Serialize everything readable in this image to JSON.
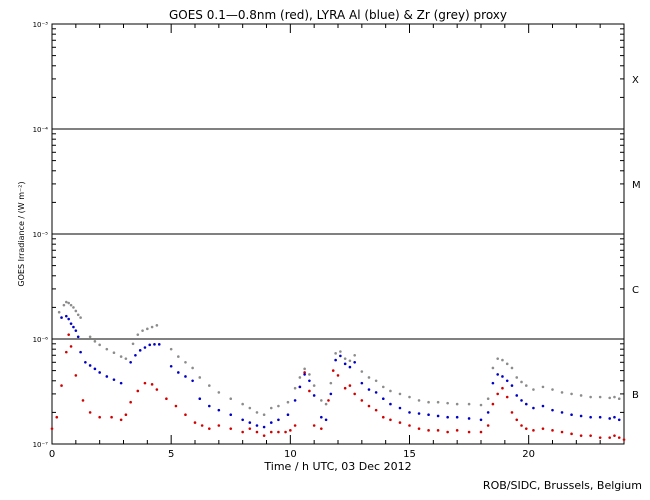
{
  "chart_data": {
    "type": "scatter",
    "title": "GOES 0.1—0.8nm (red), LYRA Al (blue) & Zr (grey) proxy",
    "xlabel": "Time / h UTC, 03 Dec 2012",
    "ylabel": "GOES Irradiance / (W m⁻²)",
    "xlim": [
      0,
      24
    ],
    "ylim": [
      1e-07,
      0.001
    ],
    "yscale": "log",
    "x_ticks": [
      0,
      5,
      10,
      15,
      20
    ],
    "x_tick_labels": [
      "0",
      "5",
      "10",
      "15",
      "20"
    ],
    "y_ticks": [
      1e-07,
      1e-06,
      1e-05,
      0.0001,
      0.001
    ],
    "y_tick_labels": [
      "10⁻⁷",
      "10⁻⁶",
      "10⁻⁵",
      "10⁻⁴",
      "10⁻³"
    ],
    "class_levels": [
      1e-06,
      1e-05,
      0.0001
    ],
    "class_labels": [
      {
        "label": "B",
        "y": 3e-07
      },
      {
        "label": "C",
        "y": 3e-06
      },
      {
        "label": "M",
        "y": 3e-05
      },
      {
        "label": "X",
        "y": 0.0003
      }
    ],
    "series": [
      {
        "color": "#d40000",
        "x": [
          0,
          0.2,
          0.4,
          0.6,
          0.7,
          0.8,
          1.0,
          1.3,
          1.6,
          2.0,
          2.5,
          2.9,
          3.1,
          3.3,
          3.6,
          3.9,
          4.2,
          4.4,
          4.8,
          5.2,
          5.6,
          6.0,
          6.3,
          6.6,
          7.0,
          7.5,
          8.0,
          8.3,
          8.6,
          8.9,
          9.2,
          9.5,
          9.8,
          10.0,
          10.2,
          10.4,
          10.6,
          10.8,
          11.0,
          11.3,
          11.6,
          11.8,
          12.0,
          12.3,
          12.5,
          12.7,
          13.0,
          13.3,
          13.6,
          13.9,
          14.2,
          14.6,
          15.0,
          15.4,
          15.8,
          16.2,
          16.6,
          17.0,
          17.5,
          18.0,
          18.3,
          18.5,
          18.7,
          18.9,
          19.1,
          19.3,
          19.5,
          19.7,
          19.9,
          20.2,
          20.6,
          21.0,
          21.4,
          21.8,
          22.2,
          22.6,
          23.0,
          23.4,
          23.6,
          23.8,
          24.0
        ],
        "y": [
          1.4e-07,
          1.8e-07,
          3.6e-07,
          7.5e-07,
          1.1e-06,
          8.5e-07,
          4.5e-07,
          2.6e-07,
          2e-07,
          1.8e-07,
          1.8e-07,
          1.7e-07,
          1.9e-07,
          2.5e-07,
          3.2e-07,
          3.8e-07,
          3.7e-07,
          3.3e-07,
          2.7e-07,
          2.3e-07,
          1.9e-07,
          1.6e-07,
          1.5e-07,
          1.4e-07,
          1.5e-07,
          1.4e-07,
          1.3e-07,
          1.4e-07,
          1.3e-07,
          1.2e-07,
          1.3e-07,
          1.3e-07,
          1.3e-07,
          1.35e-07,
          1.5e-07,
          3.5e-07,
          4.8e-07,
          3.2e-07,
          1.5e-07,
          1.4e-07,
          2.6e-07,
          5e-07,
          4.5e-07,
          3.4e-07,
          3.6e-07,
          3e-07,
          2.6e-07,
          2.3e-07,
          2.1e-07,
          1.8e-07,
          1.7e-07,
          1.6e-07,
          1.5e-07,
          1.4e-07,
          1.35e-07,
          1.35e-07,
          1.3e-07,
          1.35e-07,
          1.3e-07,
          1.3e-07,
          1.5e-07,
          2.4e-07,
          3e-07,
          3.4e-07,
          2.8e-07,
          2e-07,
          1.7e-07,
          1.5e-07,
          1.4e-07,
          1.35e-07,
          1.4e-07,
          1.35e-07,
          1.3e-07,
          1.25e-07,
          1.2e-07,
          1.2e-07,
          1.15e-07,
          1.15e-07,
          1.2e-07,
          1.15e-07,
          1.1e-07
        ]
      },
      {
        "color": "#0000c8",
        "x": [
          0.4,
          0.6,
          0.7,
          0.8,
          0.9,
          1.0,
          1.1,
          1.2,
          1.4,
          1.6,
          1.8,
          2.0,
          2.3,
          2.6,
          2.9,
          3.3,
          3.5,
          3.7,
          3.9,
          4.1,
          4.3,
          4.5,
          5.0,
          5.3,
          5.6,
          5.9,
          6.2,
          6.6,
          7.0,
          7.5,
          8.0,
          8.3,
          8.6,
          8.9,
          9.2,
          9.5,
          9.9,
          10.2,
          10.4,
          10.6,
          10.8,
          11.0,
          11.3,
          11.5,
          11.7,
          11.9,
          12.1,
          12.3,
          12.5,
          12.7,
          13.0,
          13.3,
          13.6,
          13.9,
          14.2,
          14.6,
          15.0,
          15.4,
          15.8,
          16.2,
          16.6,
          17.0,
          17.5,
          18.0,
          18.3,
          18.5,
          18.7,
          18.9,
          19.1,
          19.3,
          19.5,
          19.7,
          19.9,
          20.2,
          20.6,
          21.0,
          21.4,
          21.8,
          22.2,
          22.6,
          23.0,
          23.4,
          23.6,
          23.8
        ],
        "y": [
          1.6e-06,
          1.65e-06,
          1.55e-06,
          1.4e-06,
          1.3e-06,
          1.2e-06,
          1.05e-06,
          7.5e-07,
          6e-07,
          5.6e-07,
          5.2e-07,
          4.8e-07,
          4.4e-07,
          4.1e-07,
          3.8e-07,
          6e-07,
          7e-07,
          7.8e-07,
          8.3e-07,
          8.8e-07,
          8.9e-07,
          8.9e-07,
          5.5e-07,
          4.8e-07,
          4.4e-07,
          4e-07,
          2.7e-07,
          2.3e-07,
          2.1e-07,
          1.9e-07,
          1.7e-07,
          1.6e-07,
          1.5e-07,
          1.45e-07,
          1.6e-07,
          1.7e-07,
          1.9e-07,
          2.6e-07,
          3.5e-07,
          4.6e-07,
          4e-07,
          2.9e-07,
          1.8e-07,
          1.7e-07,
          3e-07,
          6.3e-07,
          6.9e-07,
          5.8e-07,
          5.4e-07,
          6e-07,
          3.8e-07,
          3.3e-07,
          3.1e-07,
          2.7e-07,
          2.4e-07,
          2.2e-07,
          2e-07,
          1.95e-07,
          1.9e-07,
          1.85e-07,
          1.8e-07,
          1.8e-07,
          1.75e-07,
          1.7e-07,
          2e-07,
          3.8e-07,
          4.6e-07,
          4.4e-07,
          4e-07,
          3.6e-07,
          2.9e-07,
          2.6e-07,
          2.4e-07,
          2.2e-07,
          2.3e-07,
          2.1e-07,
          2e-07,
          1.9e-07,
          1.85e-07,
          1.8e-07,
          1.8e-07,
          1.75e-07,
          1.8e-07,
          1.7e-07
        ]
      },
      {
        "color": "#8c8c8c",
        "x": [
          0.3,
          0.5,
          0.6,
          0.7,
          0.8,
          0.9,
          1.0,
          1.1,
          1.2,
          1.6,
          1.8,
          2.0,
          2.3,
          2.6,
          2.9,
          3.1,
          3.4,
          3.6,
          3.8,
          4.0,
          4.2,
          4.4,
          5.0,
          5.3,
          5.6,
          5.9,
          6.2,
          6.6,
          7.0,
          7.5,
          8.0,
          8.3,
          8.6,
          8.9,
          9.2,
          9.5,
          9.9,
          10.2,
          10.4,
          10.6,
          10.8,
          11.0,
          11.3,
          11.5,
          11.7,
          11.9,
          12.1,
          12.3,
          12.5,
          12.7,
          13.0,
          13.3,
          13.6,
          13.9,
          14.2,
          14.6,
          15.0,
          15.4,
          15.8,
          16.2,
          16.6,
          17.0,
          17.5,
          18.0,
          18.3,
          18.5,
          18.7,
          18.9,
          19.1,
          19.3,
          19.5,
          19.7,
          19.9,
          20.2,
          20.6,
          21.0,
          21.4,
          21.8,
          22.2,
          22.6,
          23.0,
          23.4,
          23.6,
          23.8
        ],
        "y": [
          1.8e-06,
          2.1e-06,
          2.25e-06,
          2.2e-06,
          2.1e-06,
          2e-06,
          1.85e-06,
          1.7e-06,
          1.6e-06,
          1.05e-06,
          9.5e-07,
          8.8e-07,
          8e-07,
          7.4e-07,
          6.8e-07,
          6.5e-07,
          9e-07,
          1.1e-06,
          1.2e-06,
          1.25e-06,
          1.3e-06,
          1.35e-06,
          8e-07,
          6.8e-07,
          6e-07,
          5.3e-07,
          4.3e-07,
          3.6e-07,
          3.1e-07,
          2.7e-07,
          2.4e-07,
          2.2e-07,
          2e-07,
          1.9e-07,
          2.2e-07,
          2.3e-07,
          2.5e-07,
          3.4e-07,
          4.3e-07,
          5.2e-07,
          4.6e-07,
          3.6e-07,
          2.6e-07,
          2.4e-07,
          3.8e-07,
          7.3e-07,
          7.6e-07,
          6.5e-07,
          6.2e-07,
          7e-07,
          4.9e-07,
          4.3e-07,
          4e-07,
          3.5e-07,
          3.2e-07,
          3e-07,
          2.8e-07,
          2.6e-07,
          2.5e-07,
          2.5e-07,
          2.45e-07,
          2.4e-07,
          2.4e-07,
          2.35e-07,
          2.7e-07,
          5.3e-07,
          6.5e-07,
          6.3e-07,
          5.8e-07,
          5.3e-07,
          4.3e-07,
          3.9e-07,
          3.6e-07,
          3.3e-07,
          3.5e-07,
          3.3e-07,
          3.1e-07,
          3e-07,
          2.9e-07,
          2.8e-07,
          2.8e-07,
          2.75e-07,
          2.8e-07,
          2.7e-07
        ]
      }
    ]
  },
  "credit": "ROB/SIDC, Brussels, Belgium"
}
